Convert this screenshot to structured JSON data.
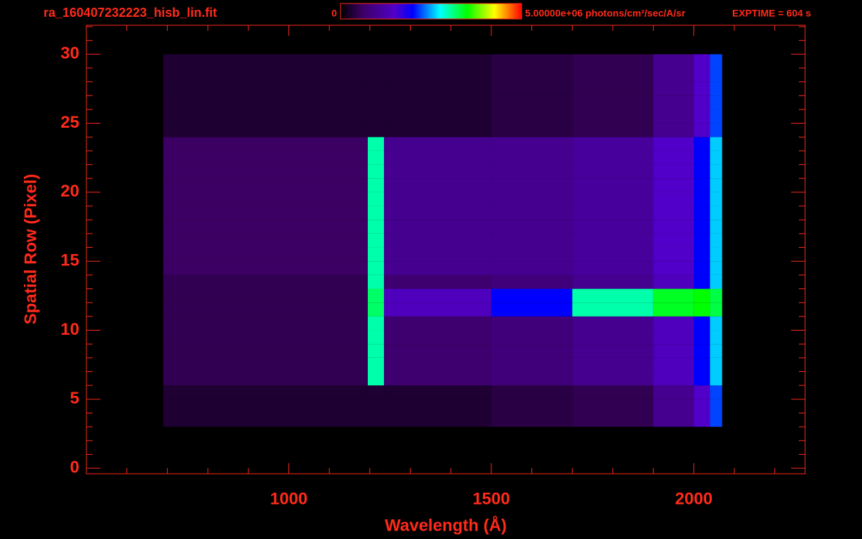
{
  "chart_data": {
    "type": "heatmap",
    "title": "ra_160407232223_hisb_lin.fit",
    "exposure": "EXPTIME = 604 s",
    "colorbar_min": 0,
    "colorbar_max": {
      "value": 5000000,
      "label": "5.00000e+06 photons/cm²/sec/A/sr"
    },
    "x_label": "Wavelength (Å)",
    "y_label": "Spatial Row (Pixel)",
    "xlim": [
      500,
      2275
    ],
    "ylim": [
      -0.4,
      32.1
    ],
    "xticks": [
      1000,
      1500,
      2000
    ],
    "xminor_ticks": [
      600,
      700,
      800,
      900,
      1100,
      1200,
      1300,
      1400,
      1600,
      1700,
      1800,
      1900,
      2100,
      2200
    ],
    "yticks": [
      0,
      5,
      10,
      15,
      20,
      25,
      30
    ],
    "yminor_ticks": [
      1,
      2,
      3,
      4,
      6,
      7,
      8,
      9,
      11,
      12,
      13,
      14,
      16,
      17,
      18,
      19,
      21,
      22,
      23,
      24,
      26,
      27,
      28,
      29,
      31,
      32
    ],
    "x_edges": [
      690,
      1195,
      1235,
      1500,
      1700,
      1900,
      2000,
      2040,
      2070
    ],
    "y_edges": [
      3,
      4,
      5,
      6,
      7,
      8,
      9,
      10,
      11,
      12,
      13,
      14,
      15,
      16,
      17,
      18,
      19,
      20,
      21,
      22,
      23,
      24,
      25,
      26,
      27,
      28,
      29,
      30
    ],
    "z": [
      [
        300000,
        300000,
        300000,
        400000,
        500000,
        1000000,
        1500000,
        2200000
      ],
      [
        300000,
        300000,
        300000,
        400000,
        500000,
        1000000,
        1500000,
        2200000
      ],
      [
        300000,
        300000,
        300000,
        400000,
        500000,
        1000000,
        1500000,
        2200000
      ],
      [
        500000,
        3000000,
        700000,
        800000,
        1000000,
        1400000,
        2000000,
        2600000
      ],
      [
        500000,
        3000000,
        700000,
        800000,
        1000000,
        1400000,
        2000000,
        2600000
      ],
      [
        500000,
        3000000,
        700000,
        800000,
        1000000,
        1400000,
        2000000,
        2600000
      ],
      [
        500000,
        3000000,
        700000,
        800000,
        1000000,
        1400000,
        2000000,
        2600000
      ],
      [
        500000,
        3000000,
        700000,
        800000,
        1000000,
        1400000,
        2000000,
        2600000
      ],
      [
        500000,
        3200000,
        1400000,
        2000000,
        3000000,
        3400000,
        3500000,
        3300000
      ],
      [
        500000,
        3200000,
        1400000,
        2000000,
        3000000,
        3400000,
        3500000,
        3300000
      ],
      [
        500000,
        3000000,
        700000,
        800000,
        1000000,
        1400000,
        2000000,
        2600000
      ],
      [
        600000,
        3000000,
        1000000,
        1000000,
        1100000,
        1500000,
        2000000,
        2600000
      ],
      [
        600000,
        3000000,
        1000000,
        1000000,
        1100000,
        1500000,
        2000000,
        2600000
      ],
      [
        600000,
        3000000,
        1000000,
        1000000,
        1100000,
        1500000,
        2000000,
        2600000
      ],
      [
        600000,
        3000000,
        1000000,
        1000000,
        1100000,
        1500000,
        2000000,
        2600000
      ],
      [
        600000,
        3000000,
        1000000,
        1000000,
        1100000,
        1500000,
        2000000,
        2600000
      ],
      [
        600000,
        3000000,
        1000000,
        1000000,
        1100000,
        1500000,
        2000000,
        2600000
      ],
      [
        600000,
        3000000,
        1000000,
        1000000,
        1100000,
        1500000,
        2000000,
        2600000
      ],
      [
        600000,
        3000000,
        1000000,
        1000000,
        1100000,
        1500000,
        2000000,
        2600000
      ],
      [
        600000,
        3000000,
        1000000,
        1000000,
        1100000,
        1500000,
        2000000,
        2600000
      ],
      [
        600000,
        3000000,
        1000000,
        1000000,
        1100000,
        1500000,
        2000000,
        2600000
      ],
      [
        300000,
        300000,
        300000,
        400000,
        500000,
        1000000,
        1500000,
        2200000
      ],
      [
        300000,
        300000,
        300000,
        400000,
        500000,
        1000000,
        1500000,
        2200000
      ],
      [
        300000,
        300000,
        300000,
        400000,
        500000,
        1000000,
        1500000,
        2200000
      ],
      [
        300000,
        300000,
        300000,
        400000,
        500000,
        1000000,
        1500000,
        2200000
      ],
      [
        300000,
        300000,
        300000,
        400000,
        500000,
        1000000,
        1500000,
        2200000
      ],
      [
        300000,
        300000,
        300000,
        400000,
        500000,
        1000000,
        1500000,
        2200000
      ]
    ]
  }
}
